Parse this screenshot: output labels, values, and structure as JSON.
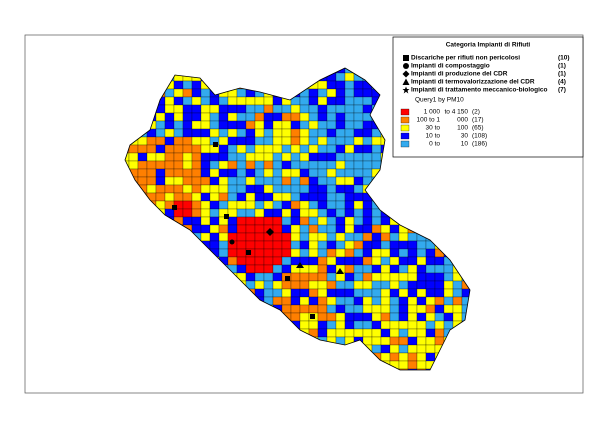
{
  "legend": {
    "title": "Categoria Impianti di Rifiuti",
    "facilities": [
      {
        "label": "Discariche per rifiuti non pericolosi",
        "count": "(10)"
      },
      {
        "label": "Impianti di compostaggio",
        "count": "(1)"
      },
      {
        "label": "Impianti di produzione del CDR",
        "count": "(1)"
      },
      {
        "label": "Impianti di termovalorizzazione del CDR",
        "count": "(4)"
      },
      {
        "label": "Impianti di trattamento meccanico-biologico",
        "count": "(7)"
      }
    ],
    "query_title": "Query1 by PM10",
    "classes": [
      {
        "from": "1 000",
        "to": "to 4 150",
        "count": "(2)",
        "color": "#ff0000"
      },
      {
        "from": "100 to 1",
        "to": "000",
        "count": "(17)",
        "color": "#ff7f00"
      },
      {
        "from": "30 to",
        "to": "100",
        "count": "(65)",
        "color": "#ffff00"
      },
      {
        "from": "10 to",
        "to": "30",
        "count": "(108)",
        "color": "#0000ff"
      },
      {
        "from": "0 to",
        "to": "10",
        "count": "(186)",
        "color": "#33aaee"
      }
    ]
  }
}
